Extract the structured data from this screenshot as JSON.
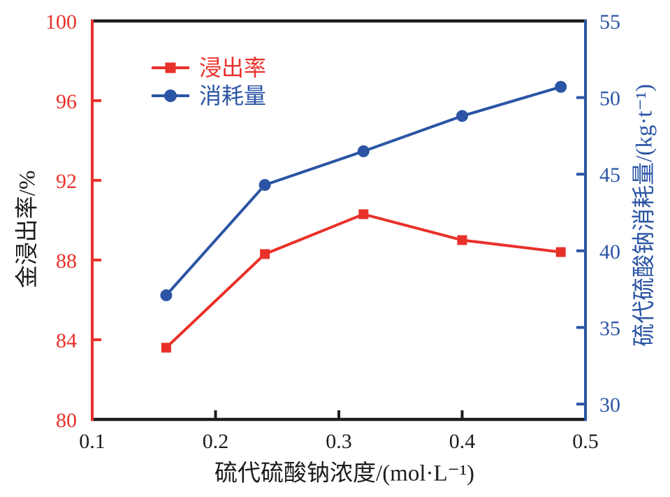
{
  "colors": {
    "series_red": "#e8312a",
    "series_blue": "#2b55a4",
    "axis_black": "#1c1c1c",
    "background": "#ffffff"
  },
  "chart_data": {
    "type": "line",
    "title": "",
    "grid": false,
    "x": [
      0.16,
      0.24,
      0.32,
      0.4,
      0.48
    ],
    "series": [
      {
        "name": "浸出率",
        "axis": "left",
        "color": "#e8312a",
        "marker": "square",
        "values": [
          83.6,
          88.3,
          90.3,
          89.0,
          88.4
        ]
      },
      {
        "name": "消耗量",
        "axis": "right",
        "color": "#2b55a4",
        "marker": "circle",
        "values": [
          37.1,
          44.3,
          46.5,
          48.8,
          50.7
        ]
      }
    ],
    "x_axis": {
      "label": "硫代硫酸钠浓度/(mol·L⁻¹)",
      "ticks": [
        0.1,
        0.2,
        0.3,
        0.4,
        0.5
      ],
      "range": [
        0.1,
        0.5
      ]
    },
    "left_axis": {
      "label": "金浸出率/%",
      "ticks": [
        80,
        84,
        88,
        92,
        96,
        100
      ],
      "range": [
        80,
        100
      ]
    },
    "right_axis": {
      "label": "硫代硫酸钠消耗量/(kg·t⁻¹)",
      "ticks": [
        30,
        35,
        40,
        45,
        50,
        55
      ],
      "range": [
        29,
        55
      ]
    },
    "legend": {
      "position": "upper-left-inside",
      "entries": [
        "浸出率",
        "消耗量"
      ]
    }
  }
}
